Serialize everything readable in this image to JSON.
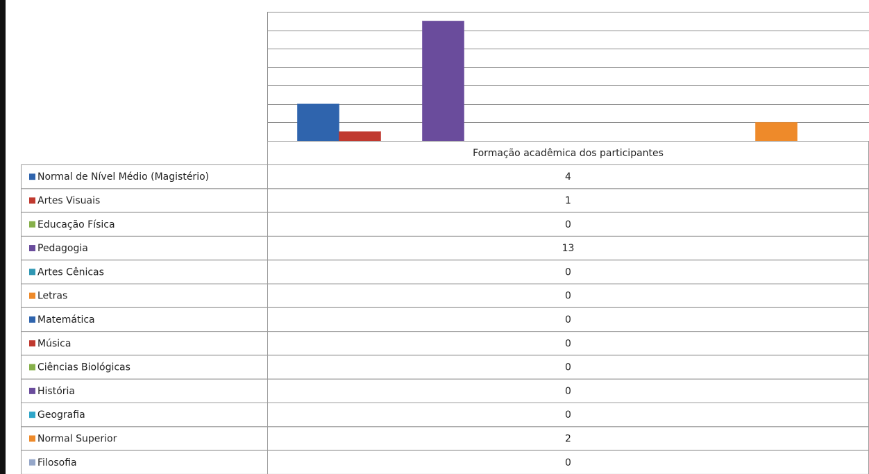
{
  "chart_data": {
    "type": "bar",
    "categories": [
      "Formação acadêmica dos participantes"
    ],
    "series": [
      {
        "name": "Normal de Nível Médio (Magistério)",
        "color": "#2f64ad",
        "values": [
          4
        ]
      },
      {
        "name": "Artes Visuais",
        "color": "#c0392f",
        "values": [
          1
        ]
      },
      {
        "name": "Educação Física",
        "color": "#86b04a",
        "values": [
          0
        ]
      },
      {
        "name": "Pedagogia",
        "color": "#6a4c9c",
        "values": [
          13
        ]
      },
      {
        "name": "Artes Cênicas",
        "color": "#2f97b3",
        "values": [
          0
        ]
      },
      {
        "name": "Letras",
        "color": "#ee8a2a",
        "values": [
          0
        ]
      },
      {
        "name": "Matemática",
        "color": "#2f64ad",
        "values": [
          0
        ]
      },
      {
        "name": "Música",
        "color": "#c0392f",
        "values": [
          0
        ]
      },
      {
        "name": "Ciências Biológicas",
        "color": "#86b04a",
        "values": [
          0
        ]
      },
      {
        "name": "História",
        "color": "#6a4c9c",
        "values": [
          0
        ]
      },
      {
        "name": "Geografia",
        "color": "#2fa6c9",
        "values": [
          0
        ]
      },
      {
        "name": "Normal Superior",
        "color": "#ee8a2a",
        "values": [
          2
        ]
      },
      {
        "name": "Filosofia",
        "color": "#95a7c9",
        "values": [
          0
        ]
      }
    ],
    "ylim": [
      0,
      14
    ],
    "yticks": [
      0,
      2,
      4,
      6,
      8,
      10,
      12,
      14
    ],
    "grid": true
  }
}
